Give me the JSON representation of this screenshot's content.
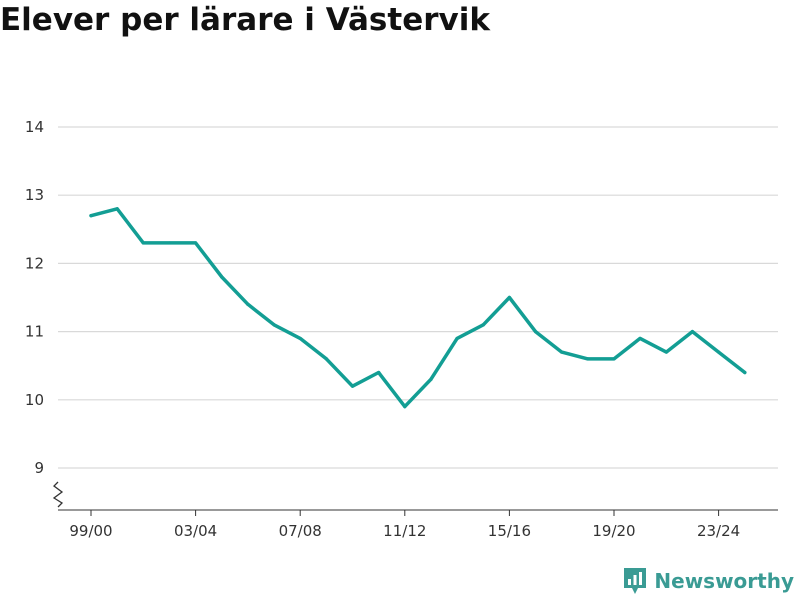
{
  "title": "Elever per lärare i Västervik",
  "brand": {
    "name": "Newsworthy",
    "icon": "newsworthy-logo-icon",
    "color": "#3a9b94"
  },
  "chart_data": {
    "type": "line",
    "title": "Elever per lärare i Västervik",
    "xlabel": "",
    "ylabel": "",
    "x": [
      "99/00",
      "00/01",
      "01/02",
      "02/03",
      "03/04",
      "04/05",
      "05/06",
      "06/07",
      "07/08",
      "08/09",
      "09/10",
      "10/11",
      "11/12",
      "12/13",
      "13/14",
      "14/15",
      "15/16",
      "16/17",
      "17/18",
      "18/19",
      "19/20",
      "20/21",
      "21/22",
      "22/23",
      "23/24",
      "24/25"
    ],
    "x_tick_labels": [
      "99/00",
      "03/04",
      "07/08",
      "11/12",
      "15/16",
      "19/20",
      "23/24"
    ],
    "y_ticks": [
      9,
      10,
      11,
      12,
      13,
      14
    ],
    "ylim": [
      8.4,
      14
    ],
    "y_axis_break": true,
    "grid": true,
    "line_color": "#139e94",
    "series": [
      {
        "values": [
          12.7,
          12.8,
          12.3,
          12.3,
          12.3,
          11.8,
          11.4,
          11.1,
          10.9,
          10.6,
          10.2,
          10.4,
          9.9,
          10.3,
          10.9,
          11.1,
          11.5,
          11.0,
          10.7,
          10.6,
          10.6,
          10.9,
          10.7,
          11.0,
          10.7,
          10.4
        ]
      }
    ]
  }
}
